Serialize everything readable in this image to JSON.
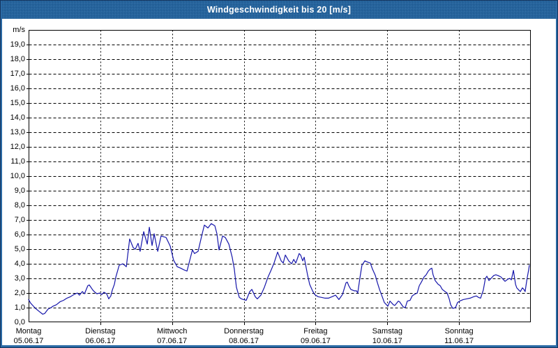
{
  "window": {
    "title": "Windgeschwindigkeit bis 20 [m/s]"
  },
  "colors": {
    "title_bar_bg": "#24639d",
    "frame_blue": "#2a69a4",
    "outer_border": "#14355e",
    "plot_bg": "#ffffff",
    "grid": "#000000",
    "axis": "#000000",
    "label_text": "#000000",
    "series_line": "#1515aa",
    "title_text": "#ffffff"
  },
  "chart_data": {
    "type": "line",
    "title": "Windgeschwindigkeit bis 20 [m/s]",
    "unit_label": "m/s",
    "ylim": [
      0,
      20
    ],
    "y_tick_step": 1,
    "y_tick_labels": [
      "0,0",
      "1,0",
      "2,0",
      "3,0",
      "4,0",
      "5,0",
      "6,0",
      "7,0",
      "8,0",
      "9,0",
      "10,0",
      "11,0",
      "12,0",
      "13,0",
      "14,0",
      "15,0",
      "16,0",
      "17,0",
      "18,0",
      "19,0"
    ],
    "x_range_hours": [
      0,
      168
    ],
    "x_tick_step_hours": 24,
    "grid": "dashed",
    "legend": "none",
    "x_days": [
      {
        "name": "Montag",
        "date": "05.06.17"
      },
      {
        "name": "Dienstag",
        "date": "06.06.17"
      },
      {
        "name": "Mittwoch",
        "date": "07.06.17"
      },
      {
        "name": "Donnerstag",
        "date": "08.06.17"
      },
      {
        "name": "Freitag",
        "date": "09.06.17"
      },
      {
        "name": "Samstag",
        "date": "10.06.17"
      },
      {
        "name": "Sonntag",
        "date": "11.06.17"
      }
    ],
    "series": [
      {
        "name": "Windgeschwindigkeit [m/s]",
        "color": "#1515aa",
        "points": [
          [
            0,
            1.55
          ],
          [
            0.7,
            1.3
          ],
          [
            1.6,
            1.1
          ],
          [
            2.3,
            0.95
          ],
          [
            3.5,
            0.75
          ],
          [
            4.7,
            0.55
          ],
          [
            5.4,
            0.6
          ],
          [
            6.5,
            0.9
          ],
          [
            7.5,
            1.0
          ],
          [
            8.2,
            1.1
          ],
          [
            9.3,
            1.2
          ],
          [
            10.5,
            1.4
          ],
          [
            11.7,
            1.5
          ],
          [
            12.8,
            1.65
          ],
          [
            14,
            1.75
          ],
          [
            15.2,
            1.9
          ],
          [
            16.3,
            2.0
          ],
          [
            17,
            1.85
          ],
          [
            18,
            2.1
          ],
          [
            18.7,
            1.95
          ],
          [
            19.8,
            2.5
          ],
          [
            20.3,
            2.55
          ],
          [
            21.5,
            2.2
          ],
          [
            22.2,
            2.05
          ],
          [
            22.9,
            1.95
          ],
          [
            23.8,
            2.0
          ],
          [
            24.5,
            1.9
          ],
          [
            25.2,
            2.05
          ],
          [
            26.1,
            1.95
          ],
          [
            26.8,
            1.6
          ],
          [
            27.5,
            1.8
          ],
          [
            28,
            2.2
          ],
          [
            28.7,
            2.6
          ],
          [
            29.2,
            3.1
          ],
          [
            30.3,
            3.9
          ],
          [
            31.5,
            4.0
          ],
          [
            32.7,
            3.8
          ],
          [
            33.8,
            5.7
          ],
          [
            35,
            5.1
          ],
          [
            35.7,
            5.0
          ],
          [
            36.6,
            5.4
          ],
          [
            37.3,
            4.85
          ],
          [
            38.5,
            6.2
          ],
          [
            39.7,
            5.35
          ],
          [
            40.4,
            6.5
          ],
          [
            41.3,
            5.25
          ],
          [
            42,
            6.05
          ],
          [
            43.2,
            4.85
          ],
          [
            44.3,
            5.9
          ],
          [
            46,
            5.8
          ],
          [
            47.4,
            5.2
          ],
          [
            48.5,
            4.25
          ],
          [
            49.7,
            3.8
          ],
          [
            50.9,
            3.7
          ],
          [
            51.8,
            3.6
          ],
          [
            53,
            3.5
          ],
          [
            54.1,
            4.4
          ],
          [
            54.8,
            4.95
          ],
          [
            55.5,
            4.7
          ],
          [
            56.7,
            4.85
          ],
          [
            57.9,
            5.9
          ],
          [
            58.8,
            6.65
          ],
          [
            60,
            6.45
          ],
          [
            61.1,
            6.75
          ],
          [
            62.3,
            6.6
          ],
          [
            63,
            6.05
          ],
          [
            63.7,
            4.95
          ],
          [
            64.9,
            5.9
          ],
          [
            65.8,
            5.8
          ],
          [
            67,
            5.35
          ],
          [
            68.1,
            4.45
          ],
          [
            68.8,
            3.65
          ],
          [
            69.5,
            2.4
          ],
          [
            70.5,
            1.7
          ],
          [
            71.2,
            1.6
          ],
          [
            72.8,
            1.5
          ],
          [
            74,
            2.1
          ],
          [
            74.7,
            2.25
          ],
          [
            75.8,
            1.75
          ],
          [
            76.5,
            1.6
          ],
          [
            77.7,
            1.85
          ],
          [
            78.9,
            2.4
          ],
          [
            80,
            3.05
          ],
          [
            81.2,
            3.6
          ],
          [
            82.1,
            4.05
          ],
          [
            83.3,
            4.8
          ],
          [
            84.5,
            4.2
          ],
          [
            85.2,
            4.05
          ],
          [
            85.9,
            4.6
          ],
          [
            87,
            4.2
          ],
          [
            88,
            4.0
          ],
          [
            88.7,
            4.3
          ],
          [
            89.4,
            4.05
          ],
          [
            90.5,
            4.7
          ],
          [
            91,
            4.6
          ],
          [
            91.7,
            4.2
          ],
          [
            92.2,
            4.45
          ],
          [
            93.3,
            3.25
          ],
          [
            94,
            2.6
          ],
          [
            95,
            2.15
          ],
          [
            95.7,
            1.9
          ],
          [
            96.8,
            1.75
          ],
          [
            98,
            1.7
          ],
          [
            99.2,
            1.65
          ],
          [
            100.3,
            1.65
          ],
          [
            101.5,
            1.75
          ],
          [
            102.7,
            1.85
          ],
          [
            103.8,
            1.55
          ],
          [
            105,
            1.9
          ],
          [
            106.2,
            2.7
          ],
          [
            106.6,
            2.75
          ],
          [
            107.1,
            2.5
          ],
          [
            107.8,
            2.25
          ],
          [
            109,
            2.15
          ],
          [
            109.7,
            2.15
          ],
          [
            110.1,
            2.0
          ],
          [
            110.8,
            3.0
          ],
          [
            111.5,
            3.9
          ],
          [
            112.5,
            4.2
          ],
          [
            113.6,
            4.1
          ],
          [
            114.3,
            4.05
          ],
          [
            115,
            3.65
          ],
          [
            116,
            3.2
          ],
          [
            116.7,
            2.7
          ],
          [
            117.4,
            2.25
          ],
          [
            118.3,
            1.75
          ],
          [
            119,
            1.35
          ],
          [
            119.7,
            1.2
          ],
          [
            120.2,
            1.1
          ],
          [
            120.9,
            1.45
          ],
          [
            122,
            1.2
          ],
          [
            122.5,
            1.15
          ],
          [
            123.7,
            1.45
          ],
          [
            124.1,
            1.4
          ],
          [
            125.3,
            1.05
          ],
          [
            126,
            1.0
          ],
          [
            126.7,
            1.45
          ],
          [
            127.6,
            1.5
          ],
          [
            128.3,
            1.8
          ],
          [
            129,
            1.9
          ],
          [
            130,
            2.0
          ],
          [
            130.7,
            2.5
          ],
          [
            131.4,
            2.75
          ],
          [
            132.3,
            3.1
          ],
          [
            133,
            3.25
          ],
          [
            133.7,
            3.5
          ],
          [
            134.4,
            3.65
          ],
          [
            134.9,
            3.7
          ],
          [
            135.3,
            3.25
          ],
          [
            136,
            2.85
          ],
          [
            137,
            2.6
          ],
          [
            137.7,
            2.5
          ],
          [
            138.4,
            2.25
          ],
          [
            139.3,
            2.1
          ],
          [
            140,
            2.0
          ],
          [
            140.7,
            1.6
          ],
          [
            141.2,
            1.2
          ],
          [
            141.9,
            0.95
          ],
          [
            142.8,
            1.0
          ],
          [
            143.5,
            1.35
          ],
          [
            144.2,
            1.45
          ],
          [
            145.4,
            1.55
          ],
          [
            146.5,
            1.6
          ],
          [
            147.7,
            1.65
          ],
          [
            148.9,
            1.75
          ],
          [
            149.8,
            1.8
          ],
          [
            150.5,
            1.7
          ],
          [
            151.2,
            1.65
          ],
          [
            152.1,
            2.2
          ],
          [
            152.8,
            3.0
          ],
          [
            153.3,
            3.15
          ],
          [
            154,
            2.85
          ],
          [
            154.7,
            3.0
          ],
          [
            155.6,
            3.2
          ],
          [
            156.3,
            3.25
          ],
          [
            157,
            3.2
          ],
          [
            158,
            3.1
          ],
          [
            158.7,
            2.95
          ],
          [
            159.4,
            2.8
          ],
          [
            160.3,
            2.95
          ],
          [
            161,
            3.0
          ],
          [
            161.5,
            2.9
          ],
          [
            162.2,
            3.55
          ],
          [
            162.9,
            2.6
          ],
          [
            163.3,
            2.35
          ],
          [
            164,
            2.2
          ],
          [
            164.5,
            2.1
          ],
          [
            165.2,
            2.35
          ],
          [
            165.7,
            2.25
          ],
          [
            166.1,
            2.1
          ],
          [
            166.4,
            2.5
          ],
          [
            166.8,
            3.05
          ],
          [
            167.3,
            3.6
          ],
          [
            167.5,
            3.9
          ]
        ]
      }
    ]
  }
}
